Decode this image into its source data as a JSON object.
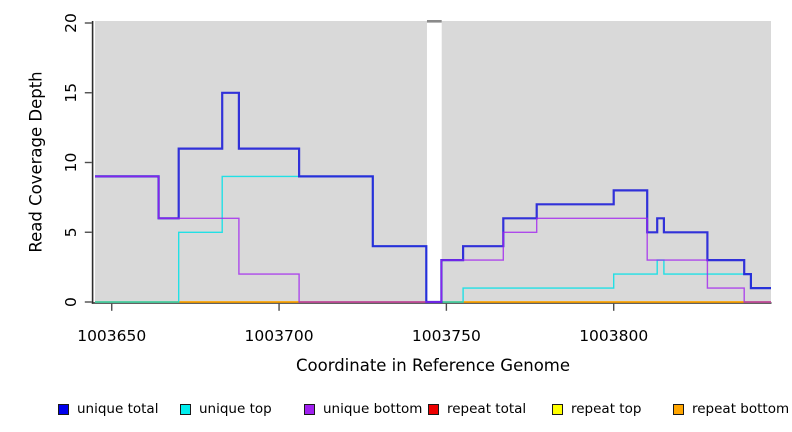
{
  "figure": {
    "background": "#ffffff",
    "plot_background": "#d9d9d9",
    "axis_color": "#2e2e2e",
    "tick_color": "#4d4d4d",
    "gap_band_color": "#ffffff",
    "gap_top_dash_color": "#8a8a8a"
  },
  "chart_data": {
    "type": "line",
    "subtype": "step-coverage",
    "title": "",
    "xlabel": "Coordinate in Reference Genome",
    "ylabel": "Read Coverage Depth",
    "xlim": [
      1003645,
      1003847
    ],
    "ylim": [
      0,
      20
    ],
    "grid": "off",
    "x_ticks": [
      {
        "value": 1003650,
        "label": "1003650"
      },
      {
        "value": 1003700,
        "label": "1003700"
      },
      {
        "value": 1003750,
        "label": "1003750"
      },
      {
        "value": 1003800,
        "label": "1003800"
      }
    ],
    "y_ticks": [
      {
        "value": 0,
        "label": "0"
      },
      {
        "value": 5,
        "label": "5"
      },
      {
        "value": 10,
        "label": "10"
      },
      {
        "value": 15,
        "label": "15"
      },
      {
        "value": 20,
        "label": "20"
      }
    ],
    "gap_band": {
      "from": 1003744.2,
      "to": 1003748.6
    },
    "series": [
      {
        "name": "repeat total",
        "color": "#dd1111",
        "width": 1.3,
        "opacity": 1,
        "points": [
          [
            1003645,
            0
          ]
        ]
      },
      {
        "name": "repeat top",
        "color": "#ffff00",
        "width": 1.3,
        "opacity": 1,
        "points": [
          [
            1003645,
            0
          ]
        ]
      },
      {
        "name": "repeat bottom",
        "color": "#ffa500",
        "width": 1.5,
        "opacity": 1,
        "points": [
          [
            1003645,
            0
          ]
        ]
      },
      {
        "name": "unique top",
        "color": "#00e1e6",
        "width": 1.4,
        "opacity": 0.85,
        "points": [
          [
            1003645,
            0
          ],
          [
            1003670,
            5
          ],
          [
            1003683,
            9
          ],
          [
            1003728,
            4
          ],
          [
            1003744,
            0
          ],
          [
            1003755,
            1
          ],
          [
            1003800,
            2
          ],
          [
            1003813,
            3
          ],
          [
            1003815,
            2
          ],
          [
            1003841,
            1
          ]
        ]
      },
      {
        "name": "unique total",
        "color": "#2323d9",
        "width": 2.2,
        "opacity": 0.92,
        "points": [
          [
            1003645,
            9
          ],
          [
            1003664,
            6
          ],
          [
            1003670,
            11
          ],
          [
            1003683,
            15
          ],
          [
            1003688,
            11
          ],
          [
            1003706,
            9
          ],
          [
            1003728,
            4
          ],
          [
            1003744,
            0
          ],
          [
            1003748.5,
            3
          ],
          [
            1003755,
            4
          ],
          [
            1003767,
            6
          ],
          [
            1003777,
            7
          ],
          [
            1003800,
            8
          ],
          [
            1003810,
            5
          ],
          [
            1003813,
            6
          ],
          [
            1003815,
            5
          ],
          [
            1003828,
            3
          ],
          [
            1003839,
            2
          ],
          [
            1003841,
            1
          ]
        ]
      },
      {
        "name": "unique bottom",
        "color": "#a020f0",
        "width": 1.4,
        "opacity": 0.78,
        "points": [
          [
            1003645,
            9
          ],
          [
            1003664,
            6
          ],
          [
            1003688,
            2
          ],
          [
            1003706,
            0
          ],
          [
            1003748.5,
            3
          ],
          [
            1003767,
            5
          ],
          [
            1003777,
            6
          ],
          [
            1003810,
            3
          ],
          [
            1003828,
            1
          ],
          [
            1003839,
            0
          ]
        ]
      }
    ],
    "legend": {
      "position": "bottom",
      "items": [
        {
          "label": "unique total",
          "color": "#0000ee"
        },
        {
          "label": "unique top",
          "color": "#00eeee"
        },
        {
          "label": "unique bottom",
          "color": "#a020f0"
        },
        {
          "label": "repeat total",
          "color": "#ee0000"
        },
        {
          "label": "repeat top",
          "color": "#ffff00"
        },
        {
          "label": "repeat bottom",
          "color": "#ffa500"
        }
      ]
    }
  }
}
